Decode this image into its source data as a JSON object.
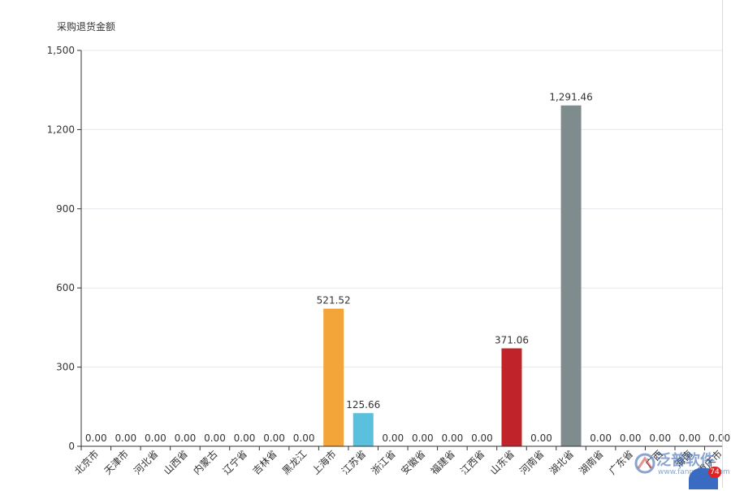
{
  "chart_data": {
    "type": "bar",
    "ylabel": "采购退货金额",
    "ylim": [
      0,
      1500
    ],
    "yticks": [
      "0",
      "300",
      "600",
      "900",
      "1,200",
      "1,500"
    ],
    "ytick_values": [
      0,
      300,
      600,
      900,
      1200,
      1500
    ],
    "grid": true,
    "categories": [
      "北京市",
      "天津市",
      "河北省",
      "山西省",
      "内蒙古",
      "辽宁省",
      "吉林省",
      "黑龙江",
      "上海市",
      "江苏省",
      "浙江省",
      "安徽省",
      "福建省",
      "江西省",
      "山东省",
      "河南省",
      "湖北省",
      "湖南省",
      "广东省",
      "广西",
      "海南",
      "重庆市"
    ],
    "values": [
      0,
      0,
      0,
      0,
      0,
      0,
      0,
      0,
      521.52,
      125.66,
      0,
      0,
      0,
      0,
      371.06,
      0,
      1291.46,
      0,
      0,
      0,
      0,
      0
    ],
    "value_labels": [
      "0.00",
      "0.00",
      "0.00",
      "0.00",
      "0.00",
      "0.00",
      "0.00",
      "0.00",
      "521.52",
      "125.66",
      "0.00",
      "0.00",
      "0.00",
      "0.00",
      "371.06",
      "0.00",
      "1,291.46",
      "0.00",
      "0.00",
      "0.00",
      "0.00",
      "0.00"
    ],
    "colors": [
      "#f4a53a",
      "#f4a53a",
      "#f4a53a",
      "#f4a53a",
      "#f4a53a",
      "#f4a53a",
      "#f4a53a",
      "#f4a53a",
      "#f4a53a",
      "#5bc0de",
      "#5bc0de",
      "#5bc0de",
      "#5bc0de",
      "#5bc0de",
      "#c1232b",
      "#c1232b",
      "#7f8c8d",
      "#7f8c8d",
      "#7f8c8d",
      "#7f8c8d",
      "#7f8c8d",
      "#7f8c8d"
    ]
  },
  "watermark": {
    "brand": "泛普软件",
    "url": "www.fanpusoft.com"
  },
  "chat": {
    "badge": "74"
  },
  "colors": {
    "axis": "#333333",
    "grid": "#e6e6ef"
  }
}
